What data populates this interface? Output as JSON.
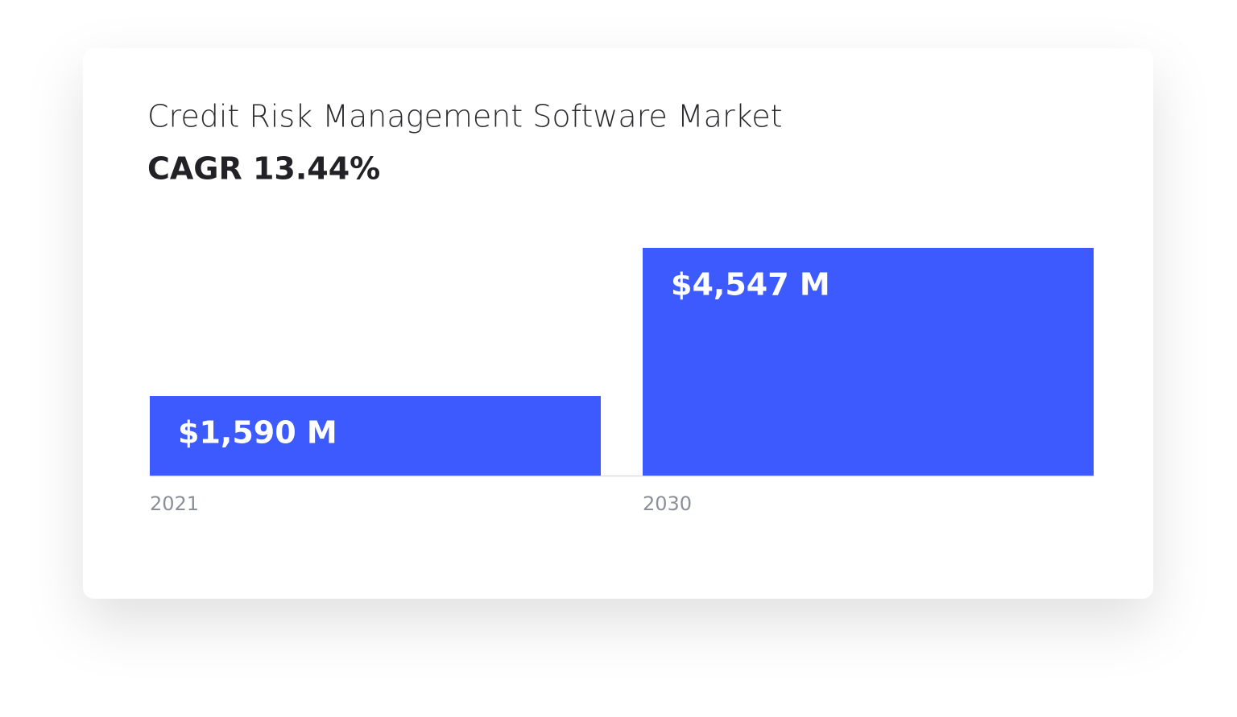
{
  "chart_data": {
    "type": "bar",
    "title": "Credit Risk Management Software Market",
    "subtitle": "CAGR 13.44%",
    "categories": [
      "2021",
      "2030"
    ],
    "values": [
      1590,
      4547
    ],
    "value_labels": [
      "$1,590 M",
      "$4,547 M"
    ],
    "color": "#3d5afe"
  }
}
